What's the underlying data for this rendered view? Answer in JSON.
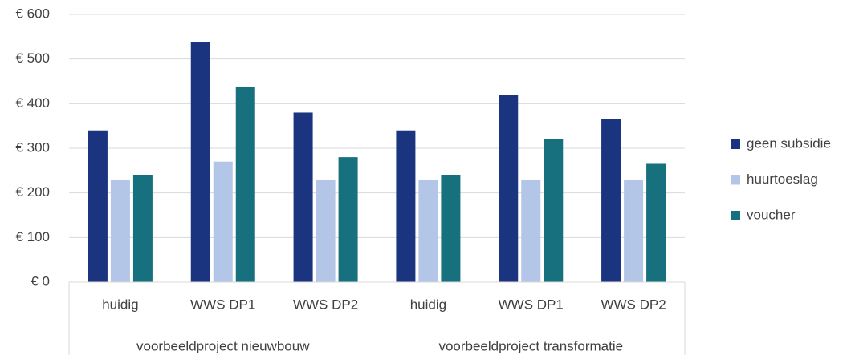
{
  "chart_data": {
    "type": "bar",
    "categories": [
      "huidig",
      "WWS DP1",
      "WWS DP2",
      "huidig",
      "WWS DP1",
      "WWS DP2"
    ],
    "groups": [
      "voorbeeldproject nieuwbouw",
      "voorbeeldproject transformatie"
    ],
    "series": [
      {
        "name": "geen subsidie",
        "color": "#1b347f",
        "values": [
          340,
          538,
          380,
          340,
          420,
          365
        ]
      },
      {
        "name": "huurtoeslag",
        "color": "#b4c6e7",
        "values": [
          230,
          270,
          230,
          230,
          230,
          230
        ]
      },
      {
        "name": "voucher",
        "color": "#17707e",
        "values": [
          240,
          437,
          280,
          240,
          320,
          265
        ]
      }
    ],
    "ylim": [
      0,
      600
    ],
    "yticks": [
      {
        "value": 0,
        "label": "€ 0"
      },
      {
        "value": 100,
        "label": "€ 100"
      },
      {
        "value": 200,
        "label": "€ 200"
      },
      {
        "value": 300,
        "label": "€ 300"
      },
      {
        "value": 400,
        "label": "€ 400"
      },
      {
        "value": 500,
        "label": "€ 500"
      },
      {
        "value": 600,
        "label": "€ 600"
      }
    ],
    "grid": true,
    "legend": "right"
  }
}
